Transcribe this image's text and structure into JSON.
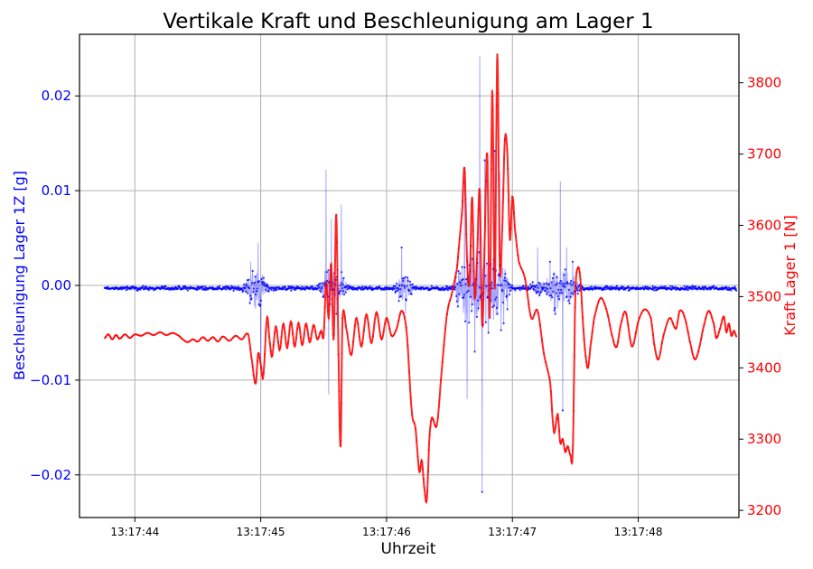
{
  "chart_data": {
    "type": "line",
    "title": "Vertikale Kraft und Beschleunigung am Lager 1",
    "xlabel": "Uhrzeit",
    "x_unit": "seconds after 13:17:43",
    "xlim": [
      0.56,
      5.8
    ],
    "x_ticks": [
      {
        "value": 1.0,
        "label": "13:17:44"
      },
      {
        "value": 2.0,
        "label": "13:17:45"
      },
      {
        "value": 3.0,
        "label": "13:17:46"
      },
      {
        "value": 4.0,
        "label": "13:17:47"
      },
      {
        "value": 5.0,
        "label": "13:17:48"
      }
    ],
    "y_left": {
      "label": "Beschleunigung Lager 1Z [g]",
      "color": "#0000ff",
      "lim": [
        -0.0245,
        0.0265
      ],
      "ticks": [
        {
          "value": -0.02,
          "label": "−0.02"
        },
        {
          "value": -0.01,
          "label": "−0.01"
        },
        {
          "value": 0.0,
          "label": "0.00"
        },
        {
          "value": 0.01,
          "label": "0.01"
        },
        {
          "value": 0.02,
          "label": "0.02"
        }
      ]
    },
    "y_right": {
      "label": "Kraft Lager 1 [N]",
      "color": "#ff0000",
      "lim": [
        3190,
        3868
      ],
      "ticks": [
        {
          "value": 3200,
          "label": "3200"
        },
        {
          "value": 3300,
          "label": "3300"
        },
        {
          "value": 3400,
          "label": "3400"
        },
        {
          "value": 3500,
          "label": "3500"
        },
        {
          "value": 3600,
          "label": "3600"
        },
        {
          "value": 3700,
          "label": "3700"
        },
        {
          "value": 3800,
          "label": "3800"
        }
      ]
    },
    "grid": true,
    "series": [
      {
        "axis": "left",
        "color": "#0000ff",
        "baseline": -0.0003,
        "noise": 0.0003,
        "x_range": [
          0.76,
          5.78
        ],
        "peaks": [
          {
            "x": 1.92,
            "y": 0.0025
          },
          {
            "x": 1.95,
            "y": -0.0022
          },
          {
            "x": 1.98,
            "y": 0.0045
          },
          {
            "x": 2.0,
            "y": -0.009
          },
          {
            "x": 2.52,
            "y": 0.0122
          },
          {
            "x": 2.54,
            "y": -0.0115
          },
          {
            "x": 2.56,
            "y": 0.007
          },
          {
            "x": 2.6,
            "y": -0.003
          },
          {
            "x": 2.64,
            "y": 0.0085
          },
          {
            "x": 3.12,
            "y": 0.004
          },
          {
            "x": 3.15,
            "y": -0.003
          },
          {
            "x": 3.62,
            "y": 0.011
          },
          {
            "x": 3.64,
            "y": -0.012
          },
          {
            "x": 3.67,
            "y": 0.006
          },
          {
            "x": 3.7,
            "y": -0.007
          },
          {
            "x": 3.74,
            "y": 0.0242
          },
          {
            "x": 3.76,
            "y": -0.0218
          },
          {
            "x": 3.78,
            "y": 0.0132
          },
          {
            "x": 3.81,
            "y": -0.005
          },
          {
            "x": 3.86,
            "y": 0.0142
          },
          {
            "x": 3.88,
            "y": -0.003
          },
          {
            "x": 3.9,
            "y": 0.012
          },
          {
            "x": 3.93,
            "y": -0.004
          },
          {
            "x": 4.2,
            "y": 0.004
          },
          {
            "x": 4.3,
            "y": 0.0025
          },
          {
            "x": 4.34,
            "y": -0.003
          },
          {
            "x": 4.38,
            "y": 0.011
          },
          {
            "x": 4.4,
            "y": -0.0132
          },
          {
            "x": 4.43,
            "y": 0.004
          },
          {
            "x": 4.48,
            "y": 0.0025
          }
        ]
      },
      {
        "axis": "right",
        "color": "#ff0000",
        "points": [
          [
            0.76,
            3442
          ],
          [
            0.79,
            3447
          ],
          [
            0.82,
            3440
          ],
          [
            0.85,
            3446
          ],
          [
            0.88,
            3441
          ],
          [
            0.92,
            3447
          ],
          [
            0.96,
            3442
          ],
          [
            1.0,
            3447
          ],
          [
            1.05,
            3445
          ],
          [
            1.1,
            3449
          ],
          [
            1.15,
            3446
          ],
          [
            1.2,
            3450
          ],
          [
            1.25,
            3446
          ],
          [
            1.3,
            3449
          ],
          [
            1.35,
            3445
          ],
          [
            1.38,
            3440
          ],
          [
            1.42,
            3436
          ],
          [
            1.46,
            3440
          ],
          [
            1.5,
            3437
          ],
          [
            1.54,
            3443
          ],
          [
            1.58,
            3438
          ],
          [
            1.62,
            3443
          ],
          [
            1.66,
            3437
          ],
          [
            1.7,
            3444
          ],
          [
            1.75,
            3438
          ],
          [
            1.8,
            3445
          ],
          [
            1.85,
            3440
          ],
          [
            1.9,
            3447
          ],
          [
            1.93,
            3410
          ],
          [
            1.96,
            3378
          ],
          [
            1.98,
            3420
          ],
          [
            2.0,
            3405
          ],
          [
            2.02,
            3388
          ],
          [
            2.05,
            3470
          ],
          [
            2.07,
            3440
          ],
          [
            2.09,
            3416
          ],
          [
            2.12,
            3458
          ],
          [
            2.15,
            3425
          ],
          [
            2.18,
            3462
          ],
          [
            2.21,
            3428
          ],
          [
            2.24,
            3465
          ],
          [
            2.27,
            3430
          ],
          [
            2.3,
            3463
          ],
          [
            2.33,
            3432
          ],
          [
            2.36,
            3462
          ],
          [
            2.39,
            3436
          ],
          [
            2.42,
            3460
          ],
          [
            2.45,
            3440
          ],
          [
            2.48,
            3452
          ],
          [
            2.5,
            3445
          ],
          [
            2.52,
            3520
          ],
          [
            2.54,
            3470
          ],
          [
            2.56,
            3545
          ],
          [
            2.58,
            3440
          ],
          [
            2.6,
            3615
          ],
          [
            2.62,
            3400
          ],
          [
            2.635,
            3290
          ],
          [
            2.65,
            3470
          ],
          [
            2.68,
            3455
          ],
          [
            2.72,
            3418
          ],
          [
            2.76,
            3470
          ],
          [
            2.8,
            3430
          ],
          [
            2.84,
            3475
          ],
          [
            2.88,
            3435
          ],
          [
            2.92,
            3478
          ],
          [
            2.96,
            3440
          ],
          [
            3.0,
            3470
          ],
          [
            3.04,
            3445
          ],
          [
            3.08,
            3455
          ],
          [
            3.12,
            3480
          ],
          [
            3.16,
            3450
          ],
          [
            3.2,
            3340
          ],
          [
            3.23,
            3315
          ],
          [
            3.26,
            3255
          ],
          [
            3.28,
            3270
          ],
          [
            3.3,
            3232
          ],
          [
            3.32,
            3215
          ],
          [
            3.34,
            3300
          ],
          [
            3.36,
            3330
          ],
          [
            3.4,
            3320
          ],
          [
            3.44,
            3400
          ],
          [
            3.48,
            3475
          ],
          [
            3.52,
            3505
          ],
          [
            3.56,
            3540
          ],
          [
            3.58,
            3580
          ],
          [
            3.6,
            3620
          ],
          [
            3.62,
            3680
          ],
          [
            3.64,
            3550
          ],
          [
            3.66,
            3520
          ],
          [
            3.68,
            3640
          ],
          [
            3.7,
            3500
          ],
          [
            3.72,
            3560
          ],
          [
            3.74,
            3650
          ],
          [
            3.76,
            3460
          ],
          [
            3.78,
            3580
          ],
          [
            3.8,
            3700
          ],
          [
            3.82,
            3470
          ],
          [
            3.84,
            3790
          ],
          [
            3.86,
            3510
          ],
          [
            3.88,
            3840
          ],
          [
            3.9,
            3540
          ],
          [
            3.92,
            3600
          ],
          [
            3.94,
            3720
          ],
          [
            3.96,
            3700
          ],
          [
            3.98,
            3580
          ],
          [
            4.0,
            3640
          ],
          [
            4.02,
            3595
          ],
          [
            4.05,
            3550
          ],
          [
            4.1,
            3525
          ],
          [
            4.15,
            3470
          ],
          [
            4.2,
            3480
          ],
          [
            4.25,
            3420
          ],
          [
            4.3,
            3380
          ],
          [
            4.33,
            3310
          ],
          [
            4.36,
            3335
          ],
          [
            4.38,
            3295
          ],
          [
            4.4,
            3300
          ],
          [
            4.42,
            3282
          ],
          [
            4.44,
            3290
          ],
          [
            4.46,
            3278
          ],
          [
            4.48,
            3285
          ],
          [
            4.5,
            3500
          ],
          [
            4.52,
            3540
          ],
          [
            4.54,
            3525
          ],
          [
            4.56,
            3465
          ],
          [
            4.58,
            3420
          ],
          [
            4.6,
            3400
          ],
          [
            4.62,
            3430
          ],
          [
            4.65,
            3470
          ],
          [
            4.7,
            3498
          ],
          [
            4.75,
            3480
          ],
          [
            4.8,
            3440
          ],
          [
            4.83,
            3430
          ],
          [
            4.86,
            3460
          ],
          [
            4.9,
            3478
          ],
          [
            4.95,
            3430
          ],
          [
            5.0,
            3465
          ],
          [
            5.05,
            3482
          ],
          [
            5.1,
            3470
          ],
          [
            5.13,
            3430
          ],
          [
            5.16,
            3412
          ],
          [
            5.2,
            3445
          ],
          [
            5.25,
            3470
          ],
          [
            5.3,
            3455
          ],
          [
            5.33,
            3480
          ],
          [
            5.37,
            3470
          ],
          [
            5.42,
            3430
          ],
          [
            5.45,
            3412
          ],
          [
            5.48,
            3425
          ],
          [
            5.52,
            3458
          ],
          [
            5.56,
            3480
          ],
          [
            5.6,
            3462
          ],
          [
            5.62,
            3442
          ],
          [
            5.65,
            3455
          ],
          [
            5.68,
            3472
          ],
          [
            5.7,
            3450
          ],
          [
            5.72,
            3462
          ],
          [
            5.74,
            3445
          ],
          [
            5.76,
            3452
          ],
          [
            5.78,
            3444
          ]
        ]
      }
    ]
  }
}
